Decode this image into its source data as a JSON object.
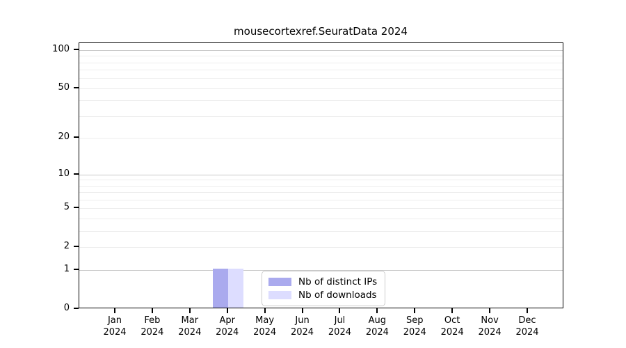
{
  "chart_data": {
    "type": "bar",
    "title": "mousecortexref.SeuratData 2024",
    "categories": [
      "Jan",
      "Feb",
      "Mar",
      "Apr",
      "May",
      "Jun",
      "Jul",
      "Aug",
      "Sep",
      "Oct",
      "Nov",
      "Dec"
    ],
    "year": "2024",
    "series": [
      {
        "name": "Nb of distinct IPs",
        "color": "#aaaaee",
        "values": [
          0,
          0,
          0,
          1,
          0,
          0,
          0,
          0,
          0,
          0,
          0,
          0
        ]
      },
      {
        "name": "Nb of downloads",
        "color": "#ddddff",
        "values": [
          0,
          0,
          0,
          1,
          0,
          0,
          0,
          0,
          0,
          0,
          0,
          0
        ]
      }
    ],
    "y_axis": {
      "scale": "log1p",
      "ticks": [
        0,
        1,
        2,
        5,
        10,
        20,
        50,
        100
      ],
      "grid_major": [
        1,
        10,
        100
      ],
      "grid_minor": [
        2,
        3,
        4,
        5,
        6,
        7,
        8,
        9,
        20,
        30,
        40,
        50,
        60,
        70,
        80,
        90
      ],
      "max": 113
    },
    "xlabel": "",
    "ylabel": "",
    "grid": true,
    "legend_position": "bottom-center"
  }
}
